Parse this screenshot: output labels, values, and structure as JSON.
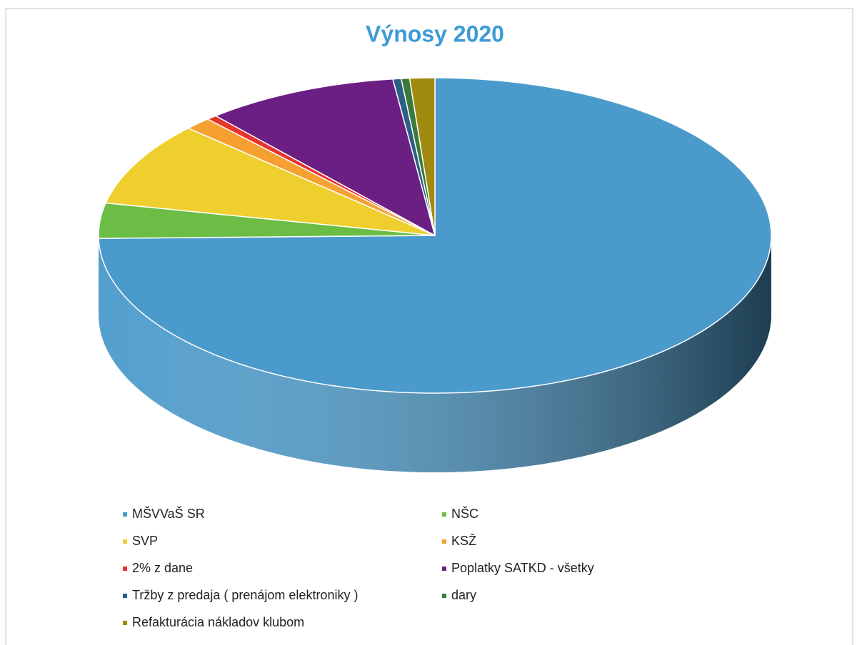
{
  "chart_data": {
    "type": "pie3d",
    "title": "Výnosy 2020",
    "categories": [
      "MŠVVaŠ  SR",
      "NŠC",
      "SVP",
      "KSŽ",
      "2% z dane",
      "Poplatky SATKD - všetky",
      "Tržby z predaja ( prenájom elektroniky )",
      "dary",
      "Refakturácia nákladov  klubom"
    ],
    "values": [
      74.7,
      3.6,
      8.6,
      1.3,
      0.5,
      9.3,
      0.4,
      0.4,
      1.2
    ],
    "colors": [
      "#4a9acb",
      "#6bbd45",
      "#eecf2e",
      "#f5a031",
      "#e8322b",
      "#6b1f82",
      "#2c5f86",
      "#3a7a3a",
      "#a08a10"
    ],
    "legend": "bottom"
  }
}
